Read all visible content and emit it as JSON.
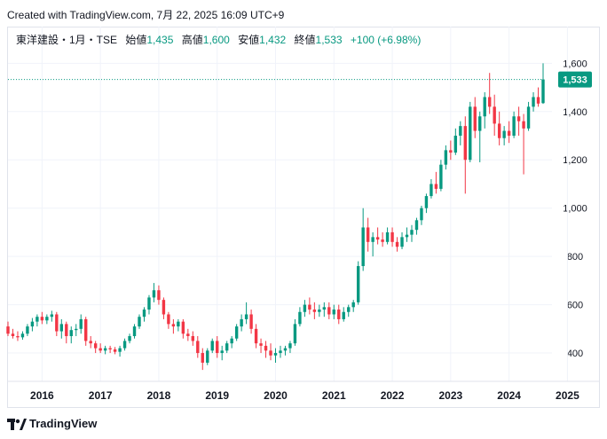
{
  "header": {
    "created_text": "Created with TradingView.com, 7月 22, 2025 16:09 UTC+9"
  },
  "legend": {
    "symbol": "東洋建設・1月・TSE",
    "open_label": "始値",
    "open_value": "1,435",
    "high_label": "高値",
    "high_value": "1,600",
    "low_label": "安値",
    "low_value": "1,432",
    "close_label": "終値",
    "close_value": "1,533",
    "change": "+100 (+6.98%)"
  },
  "price_tag": {
    "text": "1,533",
    "value": 1533
  },
  "footer": {
    "brand": "TradingView"
  },
  "colors": {
    "up": "#089981",
    "down": "#f23645",
    "grid": "#f0f3fa",
    "axis_text": "#131722",
    "price_line": "#089981"
  },
  "chart_data": {
    "type": "candlestick",
    "interval": "monthly",
    "y_ticks": [
      400,
      600,
      800,
      1000,
      1200,
      1400,
      1600
    ],
    "y_tick_labels": [
      "400",
      "600",
      "800",
      "1,000",
      "1,200",
      "1,400",
      "1,600"
    ],
    "x_tick_labels": [
      "2016",
      "2017",
      "2018",
      "2019",
      "2020",
      "2021",
      "2022",
      "2023",
      "2024",
      "2025"
    ],
    "ylim": [
      290,
      1660
    ],
    "current_price": 1533,
    "ohlc": [
      [
        510,
        530,
        470,
        480
      ],
      [
        480,
        500,
        460,
        470
      ],
      [
        470,
        490,
        450,
        465
      ],
      [
        465,
        490,
        455,
        480
      ],
      [
        480,
        520,
        470,
        510
      ],
      [
        510,
        545,
        490,
        530
      ],
      [
        530,
        560,
        510,
        550
      ],
      [
        550,
        570,
        520,
        535
      ],
      [
        535,
        560,
        520,
        550
      ],
      [
        550,
        575,
        530,
        560
      ],
      [
        560,
        570,
        470,
        490
      ],
      [
        490,
        540,
        460,
        520
      ],
      [
        520,
        530,
        440,
        470
      ],
      [
        470,
        510,
        440,
        495
      ],
      [
        495,
        520,
        470,
        500
      ],
      [
        500,
        560,
        480,
        540
      ],
      [
        540,
        550,
        430,
        450
      ],
      [
        450,
        470,
        420,
        440
      ],
      [
        440,
        450,
        400,
        420
      ],
      [
        420,
        440,
        400,
        410
      ],
      [
        410,
        430,
        395,
        420
      ],
      [
        420,
        430,
        400,
        415
      ],
      [
        415,
        425,
        395,
        405
      ],
      [
        405,
        430,
        385,
        420
      ],
      [
        420,
        460,
        410,
        450
      ],
      [
        450,
        480,
        440,
        470
      ],
      [
        470,
        520,
        460,
        510
      ],
      [
        510,
        560,
        500,
        550
      ],
      [
        550,
        590,
        530,
        580
      ],
      [
        580,
        640,
        560,
        630
      ],
      [
        630,
        690,
        610,
        660
      ],
      [
        660,
        680,
        600,
        620
      ],
      [
        620,
        630,
        540,
        560
      ],
      [
        560,
        570,
        500,
        520
      ],
      [
        520,
        540,
        480,
        510
      ],
      [
        510,
        540,
        490,
        530
      ],
      [
        530,
        540,
        460,
        480
      ],
      [
        480,
        500,
        450,
        470
      ],
      [
        470,
        490,
        430,
        450
      ],
      [
        450,
        470,
        380,
        400
      ],
      [
        400,
        420,
        330,
        360
      ],
      [
        360,
        420,
        350,
        410
      ],
      [
        410,
        460,
        400,
        450
      ],
      [
        450,
        470,
        380,
        400
      ],
      [
        400,
        430,
        370,
        410
      ],
      [
        410,
        450,
        400,
        440
      ],
      [
        440,
        470,
        420,
        460
      ],
      [
        460,
        520,
        450,
        510
      ],
      [
        510,
        560,
        490,
        540
      ],
      [
        540,
        610,
        520,
        560
      ],
      [
        560,
        580,
        480,
        500
      ],
      [
        500,
        520,
        420,
        440
      ],
      [
        440,
        460,
        400,
        430
      ],
      [
        430,
        450,
        380,
        410
      ],
      [
        410,
        440,
        370,
        390
      ],
      [
        390,
        420,
        360,
        400
      ],
      [
        400,
        430,
        380,
        410
      ],
      [
        410,
        430,
        390,
        420
      ],
      [
        420,
        450,
        400,
        440
      ],
      [
        440,
        540,
        430,
        520
      ],
      [
        520,
        590,
        510,
        570
      ],
      [
        570,
        620,
        550,
        600
      ],
      [
        600,
        630,
        560,
        580
      ],
      [
        580,
        610,
        540,
        570
      ],
      [
        570,
        600,
        550,
        580
      ],
      [
        580,
        610,
        550,
        590
      ],
      [
        590,
        610,
        540,
        560
      ],
      [
        560,
        600,
        540,
        580
      ],
      [
        580,
        600,
        520,
        540
      ],
      [
        540,
        590,
        530,
        570
      ],
      [
        570,
        600,
        550,
        590
      ],
      [
        590,
        620,
        570,
        610
      ],
      [
        610,
        780,
        600,
        760
      ],
      [
        760,
        1000,
        740,
        920
      ],
      [
        920,
        960,
        820,
        860
      ],
      [
        860,
        900,
        800,
        880
      ],
      [
        880,
        920,
        850,
        870
      ],
      [
        870,
        900,
        840,
        860
      ],
      [
        860,
        920,
        850,
        900
      ],
      [
        900,
        920,
        840,
        860
      ],
      [
        860,
        880,
        820,
        840
      ],
      [
        840,
        900,
        830,
        880
      ],
      [
        880,
        920,
        860,
        890
      ],
      [
        890,
        930,
        860,
        910
      ],
      [
        910,
        960,
        890,
        950
      ],
      [
        950,
        1010,
        930,
        1000
      ],
      [
        1000,
        1060,
        980,
        1050
      ],
      [
        1050,
        1120,
        1040,
        1100
      ],
      [
        1100,
        1150,
        1060,
        1080
      ],
      [
        1080,
        1200,
        1070,
        1180
      ],
      [
        1180,
        1260,
        1160,
        1240
      ],
      [
        1240,
        1280,
        1200,
        1230
      ],
      [
        1230,
        1330,
        1220,
        1300
      ],
      [
        1300,
        1360,
        1260,
        1340
      ],
      [
        1340,
        1380,
        1060,
        1200
      ],
      [
        1200,
        1440,
        1190,
        1420
      ],
      [
        1420,
        1460,
        1290,
        1320
      ],
      [
        1320,
        1400,
        1190,
        1380
      ],
      [
        1380,
        1480,
        1330,
        1460
      ],
      [
        1460,
        1560,
        1390,
        1420
      ],
      [
        1420,
        1470,
        1300,
        1350
      ],
      [
        1350,
        1400,
        1260,
        1290
      ],
      [
        1290,
        1340,
        1260,
        1320
      ],
      [
        1320,
        1360,
        1270,
        1300
      ],
      [
        1300,
        1400,
        1290,
        1380
      ],
      [
        1380,
        1420,
        1300,
        1360
      ],
      [
        1360,
        1390,
        1140,
        1330
      ],
      [
        1330,
        1440,
        1320,
        1420
      ],
      [
        1420,
        1480,
        1400,
        1460
      ],
      [
        1460,
        1500,
        1420,
        1433
      ],
      [
        1435,
        1600,
        1432,
        1533
      ]
    ]
  }
}
